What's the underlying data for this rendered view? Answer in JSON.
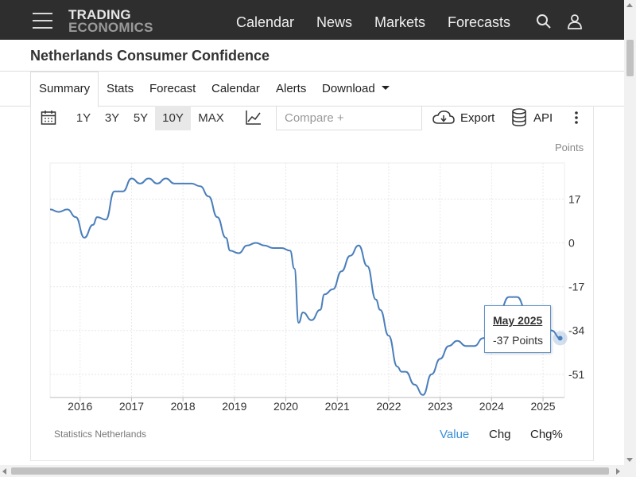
{
  "nav": {
    "logo_line1": "TRADING",
    "logo_line2": "ECONOMICS",
    "links": [
      "Calendar",
      "News",
      "Markets",
      "Forecasts"
    ]
  },
  "page_title": "Netherlands Consumer Confidence",
  "tabs": [
    "Summary",
    "Stats",
    "Forecast",
    "Calendar",
    "Alerts",
    "Download"
  ],
  "active_tab": "Summary",
  "toolbar": {
    "ranges": [
      "1Y",
      "3Y",
      "5Y",
      "10Y",
      "MAX"
    ],
    "active_range": "10Y",
    "compare_placeholder": "Compare +",
    "export_label": "Export",
    "api_label": "API"
  },
  "units_label": "Points",
  "source": "Statistics Netherlands",
  "footer_tabs": [
    "Value",
    "Chg",
    "Chg%"
  ],
  "active_footer_tab": "Value",
  "tooltip": {
    "date": "May 2025",
    "value": "-37 Points"
  },
  "colors": {
    "line": "#4a7ebb",
    "accent": "#3a8fd8",
    "nav_bg": "#2e2e2e"
  },
  "chart_data": {
    "type": "line",
    "title": "",
    "xlabel": "",
    "ylabel": "Points",
    "x_tick_labels": [
      "2016",
      "2017",
      "2018",
      "2019",
      "2020",
      "2021",
      "2022",
      "2023",
      "2024",
      "2025"
    ],
    "y_ticks": [
      17,
      0,
      -17,
      -34,
      -51
    ],
    "ylim": [
      -60,
      31
    ],
    "xlim": [
      "2015-06",
      "2025-06"
    ],
    "grid": true,
    "series": [
      {
        "x": [
          "2015-06",
          "2015-08",
          "2015-10",
          "2015-12",
          "2016-02",
          "2016-04",
          "2016-05",
          "2016-07",
          "2016-09",
          "2016-11",
          "2017-01",
          "2017-03",
          "2017-05",
          "2017-07",
          "2017-09",
          "2017-11",
          "2018-01",
          "2018-03",
          "2018-05",
          "2018-07",
          "2018-09",
          "2018-11",
          "2018-12",
          "2019-02",
          "2019-04",
          "2019-06",
          "2019-08",
          "2019-10",
          "2019-12",
          "2020-02",
          "2020-03",
          "2020-04",
          "2020-05",
          "2020-07",
          "2020-09",
          "2020-10",
          "2020-12",
          "2021-02",
          "2021-04",
          "2021-06",
          "2021-08",
          "2021-10",
          "2021-11",
          "2022-01",
          "2022-03",
          "2022-04",
          "2022-05",
          "2022-07",
          "2022-09",
          "2022-11",
          "2023-01",
          "2023-03",
          "2023-05",
          "2023-07",
          "2023-09",
          "2023-11",
          "2024-01",
          "2024-03",
          "2024-05",
          "2024-07",
          "2024-09",
          "2024-11",
          "2025-01",
          "2025-03",
          "2025-05"
        ],
        "values": [
          13,
          12,
          13,
          10,
          2,
          7,
          10,
          9,
          20,
          20,
          25,
          23,
          25,
          23,
          25,
          23,
          23,
          23,
          22,
          18,
          10,
          2,
          -3,
          -4,
          -1,
          0,
          -1,
          -2,
          -2,
          -3,
          -10,
          -31,
          -27,
          -30,
          -26,
          -20,
          -18,
          -11,
          -5,
          -1,
          -9,
          -22,
          -26,
          -36,
          -48,
          -50,
          -50,
          -55,
          -59,
          -51,
          -45,
          -40,
          -38,
          -40,
          -40,
          -37,
          -35,
          -26,
          -21,
          -21,
          -26,
          -28,
          -29,
          -34,
          -37
        ]
      }
    ]
  }
}
